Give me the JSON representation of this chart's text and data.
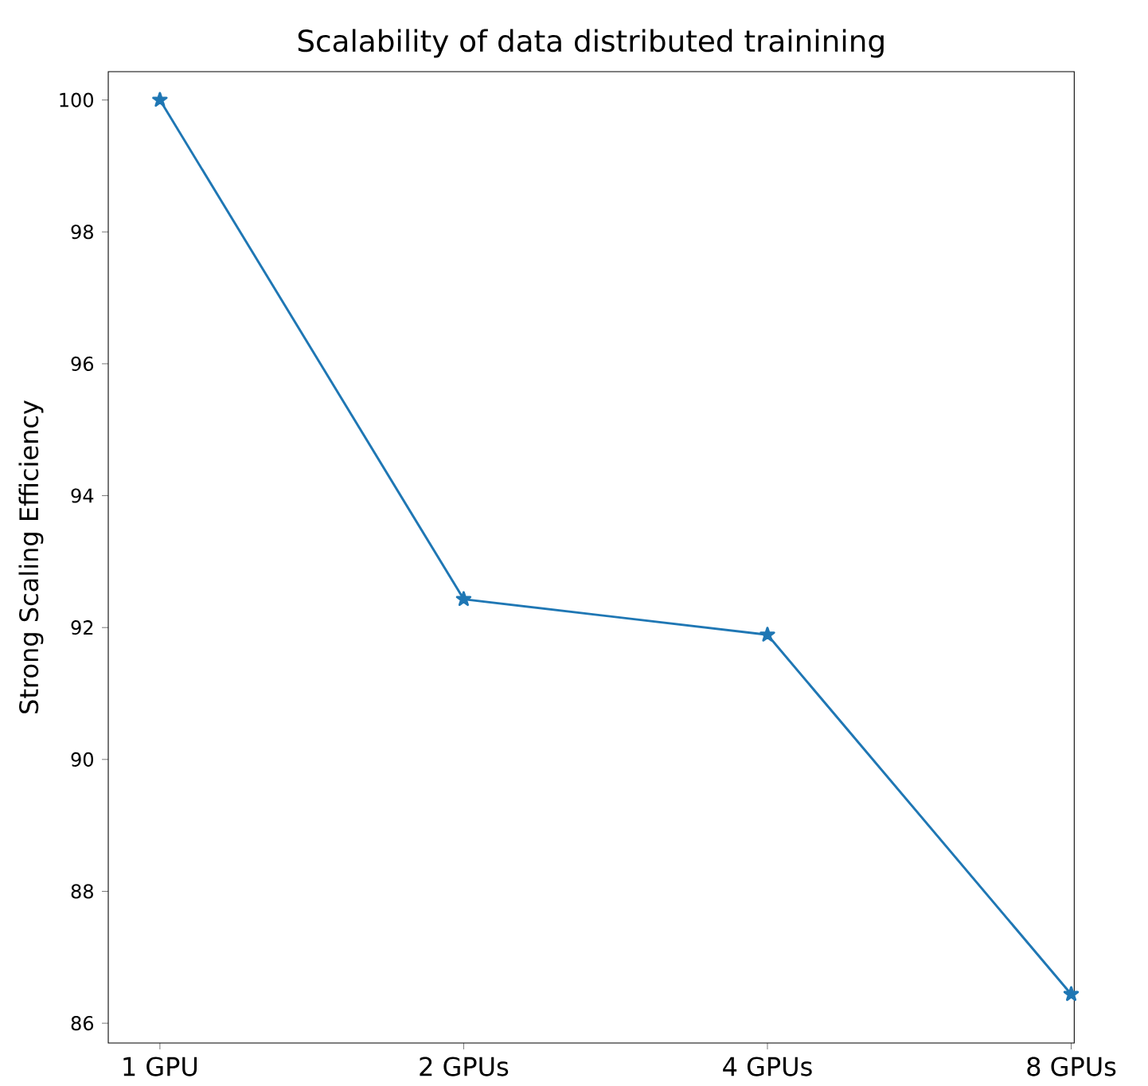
{
  "chart_data": {
    "type": "line",
    "title": "Scalability of data distributed trainining",
    "ylabel": "Strong Scaling Efficiency",
    "categories": [
      "1 GPU",
      "2 GPUs",
      "4 GPUs",
      "8 GPUs"
    ],
    "series": [
      {
        "color": "#1f77b4",
        "values": [
          100,
          92.43,
          91.89,
          86.44
        ]
      }
    ],
    "ylim": [
      85.7,
      100.43
    ],
    "yticks": [
      86,
      88,
      90,
      92,
      94,
      96,
      98,
      100
    ],
    "marker": "star",
    "line_style": "solid",
    "grid": false
  }
}
